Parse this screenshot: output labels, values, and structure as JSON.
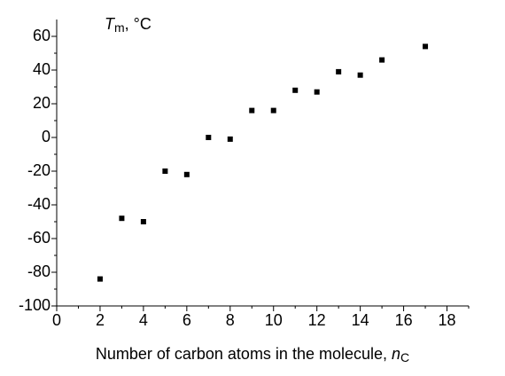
{
  "chart_data": {
    "type": "scatter",
    "y_label": {
      "symbol": "T",
      "subscript": "m",
      "unit": ", °C"
    },
    "x_label": {
      "text": "Number of carbon atoms in the molecule, ",
      "symbol": "n",
      "subscript": "C"
    },
    "x": [
      2,
      3,
      4,
      5,
      6,
      7,
      8,
      9,
      10,
      11,
      12,
      13,
      14,
      15,
      17
    ],
    "values": [
      -84,
      -48,
      -50,
      -20,
      -22,
      0,
      -1,
      16,
      16,
      28,
      27,
      39,
      37,
      46,
      54
    ],
    "color": "#000000",
    "xlim": [
      0,
      19
    ],
    "xticks": [
      0,
      2,
      4,
      6,
      8,
      10,
      12,
      14,
      16,
      18
    ],
    "ylim": [
      -100,
      70
    ],
    "yticks": [
      -100,
      -80,
      -60,
      -40,
      -20,
      0,
      20,
      40,
      60
    ],
    "minor_ticks": true,
    "grid": false
  }
}
